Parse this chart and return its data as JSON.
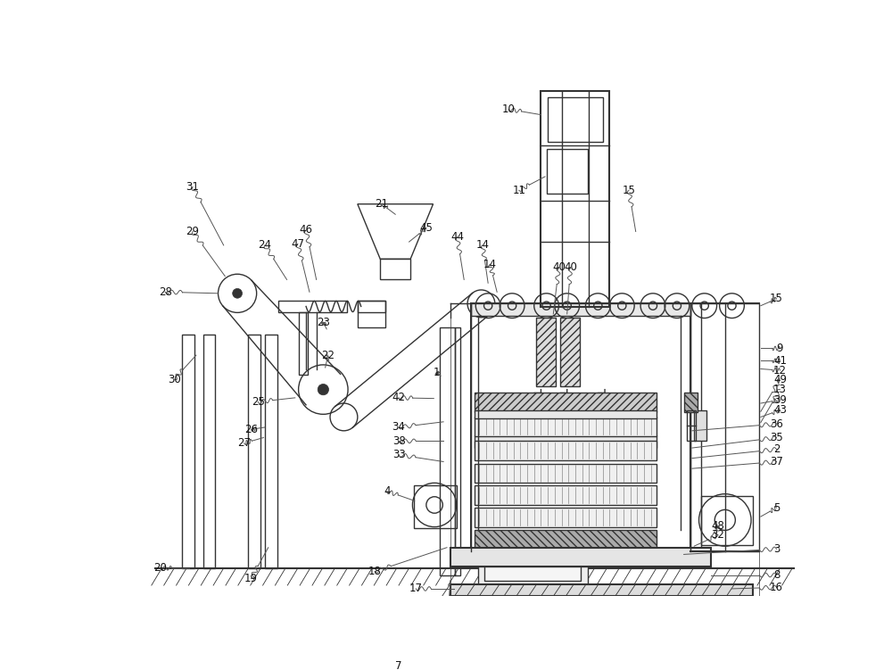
{
  "bg_color": "#ffffff",
  "line_color": "#333333",
  "lw": 1.0,
  "tlw": 1.5
}
